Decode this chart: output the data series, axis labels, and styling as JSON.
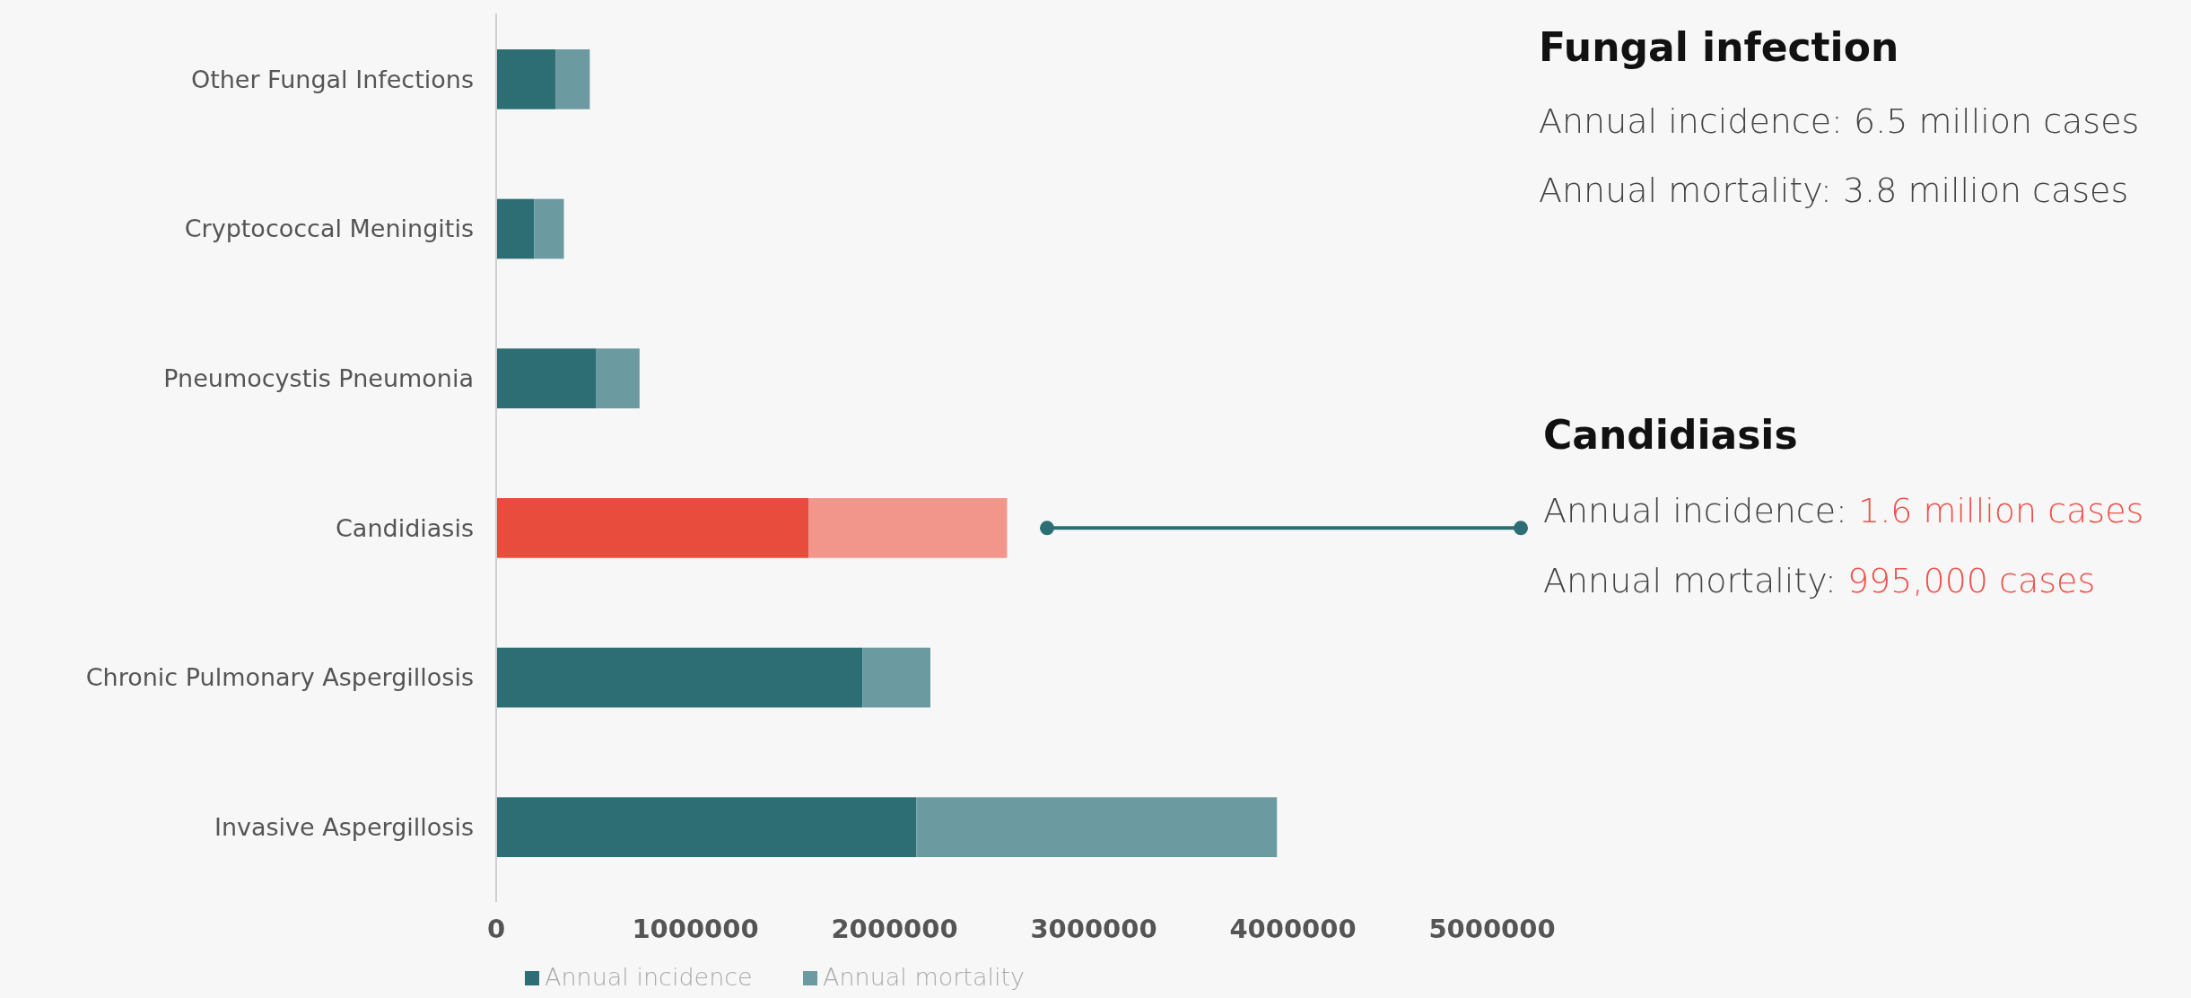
{
  "chart_data": {
    "type": "bar",
    "orientation": "horizontal",
    "stacked": true,
    "categories": [
      "Other  Fungal Infections",
      "Cryptococcal Meningitis",
      "Pneumocystis Pneumonia",
      "Candidiasis",
      "Chronic Pulmonary Aspergillosis",
      "Invasive Aspergillosis"
    ],
    "series": [
      {
        "name": "Annual incidence",
        "color": "#2d6e75",
        "colors": [
          "#2d6e75",
          "#2d6e75",
          "#2d6e75",
          "#e84c3d",
          "#2d6e75",
          "#2d6e75"
        ],
        "values": [
          300000,
          190000,
          500000,
          1570000,
          1840000,
          2110000
        ]
      },
      {
        "name": "Annual mortality",
        "color": "#6b9aa1",
        "colors": [
          "#6b9aa1",
          "#6b9aa1",
          "#6b9aa1",
          "#f2958a",
          "#6b9aa1",
          "#6b9aa1"
        ],
        "values": [
          170000,
          150000,
          220000,
          995000,
          340000,
          1810000
        ]
      }
    ],
    "xlim": [
      0,
      5000000
    ],
    "xticks": [
      0,
      1000000,
      2000000,
      3000000,
      4000000,
      5000000
    ],
    "legend": "bottom",
    "grid": false,
    "annotations": [
      "Fungal infection",
      "Annual incidence: 6.5 million cases",
      "Annual mortality: 3.8 million cases",
      "Candidiasis",
      "Annual incidence: 1.6 million cases",
      "Annual mortality: 995,000 cases"
    ]
  }
}
